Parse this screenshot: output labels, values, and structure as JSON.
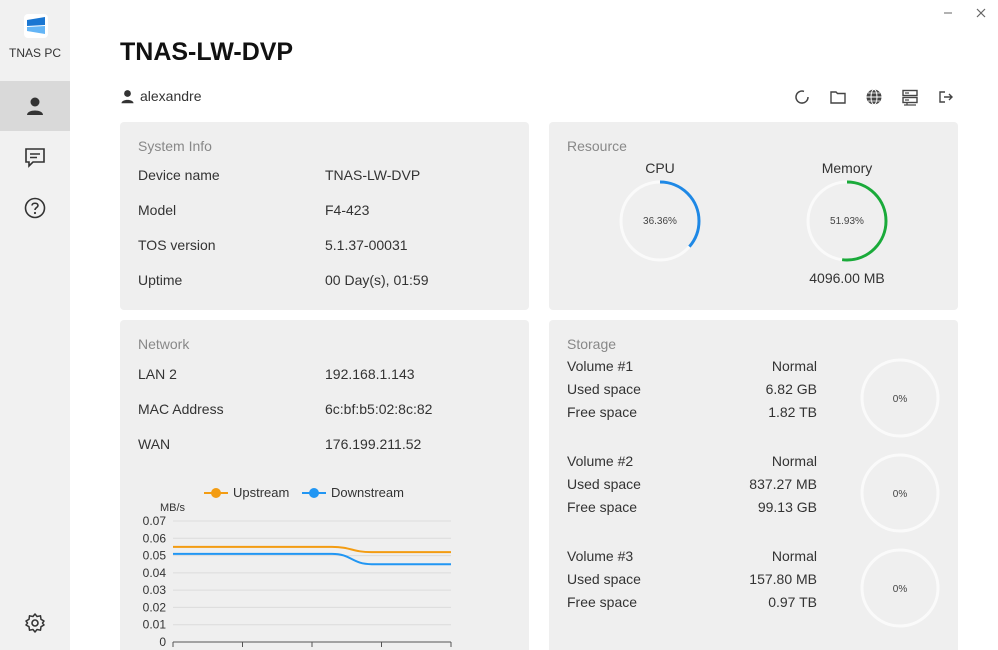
{
  "app": {
    "name": "TNAS PC"
  },
  "device_title": "TNAS-LW-DVP",
  "user": {
    "name": "alexandre"
  },
  "toolbar": {
    "icons": [
      "refresh-icon",
      "folder-icon",
      "globe-icon",
      "server-icon",
      "logout-icon"
    ]
  },
  "system_info": {
    "title": "System Info",
    "rows": [
      {
        "key": "Device name",
        "value": "TNAS-LW-DVP"
      },
      {
        "key": "Model",
        "value": "F4-423"
      },
      {
        "key": "TOS version",
        "value": "5.1.37-00031"
      },
      {
        "key": "Uptime",
        "value": "00 Day(s), 01:59"
      }
    ]
  },
  "resource": {
    "title": "Resource",
    "cpu": {
      "label": "CPU",
      "percent_text": "36.36%",
      "fraction": 0.3636,
      "color": "#1e88e5"
    },
    "memory": {
      "label": "Memory",
      "percent_text": "51.93%",
      "fraction": 0.5193,
      "color": "#1aaa3a",
      "total": "4096.00 MB"
    }
  },
  "network": {
    "title": "Network",
    "rows": [
      {
        "key": "LAN 2",
        "value": "192.168.1.143"
      },
      {
        "key": "MAC Address",
        "value": "6c:bf:b5:02:8c:82"
      },
      {
        "key": "WAN",
        "value": "176.199.211.52"
      }
    ]
  },
  "chart_data": {
    "type": "line",
    "ylabel": "MB/s",
    "ylim": [
      0,
      0.07
    ],
    "y_ticks": [
      "0.07",
      "0.06",
      "0.05",
      "0.04",
      "0.03",
      "0.02",
      "0.01",
      "0"
    ],
    "legend": "top",
    "series": [
      {
        "name": "Upstream",
        "color": "#f39c12",
        "values": [
          0.055,
          0.055,
          0.055,
          0.055,
          0.055,
          0.052,
          0.052,
          0.052
        ]
      },
      {
        "name": "Downstream",
        "color": "#2196f3",
        "values": [
          0.051,
          0.051,
          0.051,
          0.051,
          0.051,
          0.045,
          0.045,
          0.045
        ]
      }
    ]
  },
  "storage": {
    "title": "Storage",
    "volumes": [
      {
        "name": "Volume #1",
        "status": "Normal",
        "used_label": "Used space",
        "used": "6.82 GB",
        "free_label": "Free space",
        "free": "1.82 TB",
        "percent": "0%"
      },
      {
        "name": "Volume #2",
        "status": "Normal",
        "used_label": "Used space",
        "used": "837.27 MB",
        "free_label": "Free space",
        "free": "99.13 GB",
        "percent": "0%"
      },
      {
        "name": "Volume #3",
        "status": "Normal",
        "used_label": "Used space",
        "used": "157.80 MB",
        "free_label": "Free space",
        "free": "0.97 TB",
        "percent": "0%"
      }
    ]
  }
}
